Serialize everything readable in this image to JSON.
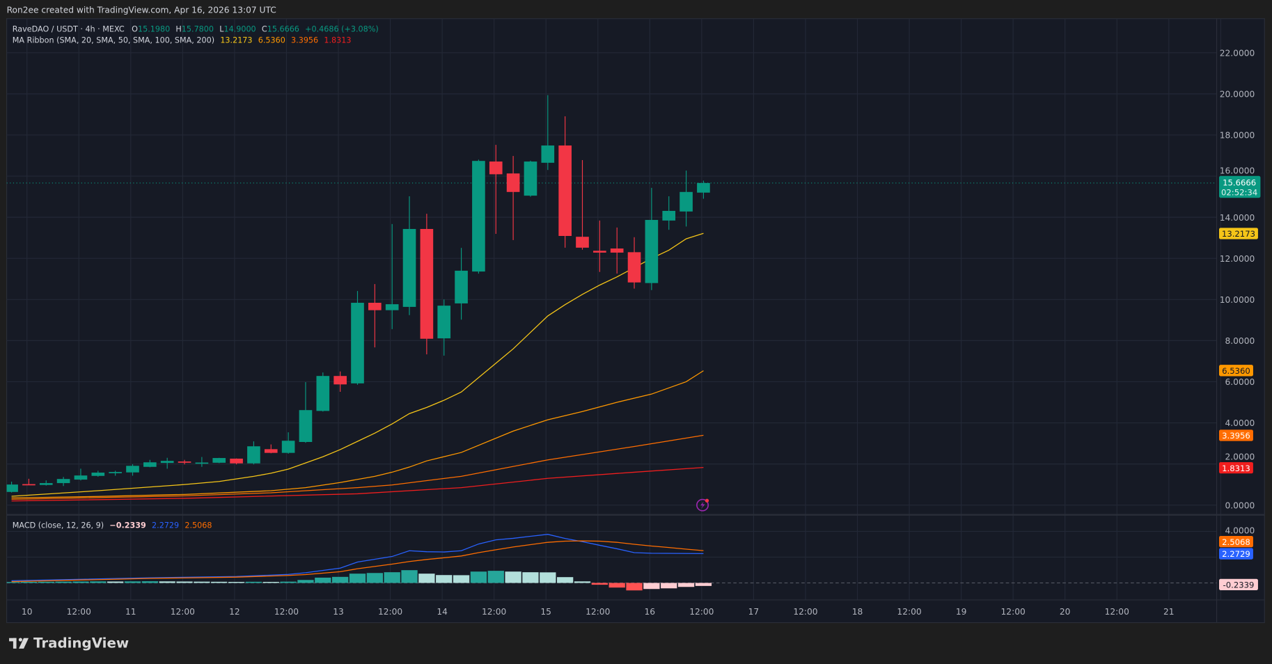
{
  "header": {
    "credit": "Ron2ee created with TradingView.com, Apr 16, 2026 13:07 UTC"
  },
  "legend": {
    "symbol": "RaveDAO / USDT · 4h · MEXC",
    "o_label": "O",
    "o": "15.1980",
    "h_label": "H",
    "h": "15.7800",
    "l_label": "L",
    "l": "14.9000",
    "c_label": "C",
    "c": "15.6666",
    "change": "+0.4686 (+3.08%)",
    "ma_title": "MA Ribbon (SMA, 20, SMA, 50, SMA, 100, SMA, 200)",
    "ma20": "13.2173",
    "ma50": "6.5360",
    "ma100": "3.3956",
    "ma200": "1.8313"
  },
  "macd_legend": {
    "title": "MACD (close, 12, 26, 9)",
    "hist": "−0.2339",
    "macd": "2.2729",
    "signal": "2.5068"
  },
  "price_labels": {
    "last": "15.6666",
    "countdown": "02:52:34",
    "ma20": "13.2173",
    "ma50": "6.5360",
    "ma100": "3.3956",
    "ma200": "1.8313"
  },
  "macd_labels": {
    "signal": "2.5068",
    "macd": "2.2729",
    "hist": "-0.2339",
    "tick": "4.0000"
  },
  "logo": {
    "text": "TradingView"
  },
  "colors": {
    "up": "#089981",
    "down": "#F23645",
    "ma20": "#F5C518",
    "ma50": "#FF9800",
    "ma100": "#FF6D00",
    "ma200": "#F01E1E",
    "macd": "#2962FF",
    "signal": "#FF6D00",
    "hist_up_strong": "#26A69A",
    "hist_up_weak": "#B2DFDB",
    "hist_down_strong": "#FF5252",
    "hist_down_weak": "#FFCDD2"
  },
  "alert_icon": "lightning-icon",
  "chart_data": [
    {
      "type": "candlestick",
      "title": "RaveDAO / USDT · 4h · MEXC",
      "ylim": [
        0,
        22
      ],
      "y_ticks": [
        "0.0000",
        "2.0000",
        "4.0000",
        "6.0000",
        "8.0000",
        "10.0000",
        "12.0000",
        "14.0000",
        "16.0000",
        "18.0000",
        "20.0000",
        "22.0000"
      ],
      "x_ticks": [
        "10",
        "12:00",
        "11",
        "12:00",
        "12",
        "12:00",
        "13",
        "12:00",
        "14",
        "12:00",
        "15",
        "12:00",
        "16",
        "12:00",
        "17",
        "12:00",
        "18",
        "12:00",
        "19",
        "12:00",
        "20",
        "12:00",
        "21",
        "12:00"
      ],
      "grid": true,
      "candles_ohlc": [
        [
          0.64,
          1.14,
          0.61,
          1.0
        ],
        [
          1.02,
          1.28,
          0.97,
          1.0
        ],
        [
          0.98,
          1.2,
          0.95,
          1.07
        ],
        [
          1.07,
          1.37,
          0.93,
          1.27
        ],
        [
          1.24,
          1.77,
          1.2,
          1.44
        ],
        [
          1.42,
          1.67,
          1.38,
          1.58
        ],
        [
          1.58,
          1.67,
          1.43,
          1.61
        ],
        [
          1.59,
          1.99,
          1.43,
          1.91
        ],
        [
          1.86,
          2.2,
          1.84,
          2.08
        ],
        [
          2.05,
          2.3,
          1.77,
          2.15
        ],
        [
          2.12,
          2.2,
          1.98,
          2.09
        ],
        [
          2.04,
          2.34,
          1.86,
          2.07
        ],
        [
          2.06,
          2.3,
          2.04,
          2.29
        ],
        [
          2.26,
          2.27,
          1.98,
          2.03
        ],
        [
          2.03,
          3.1,
          1.98,
          2.86
        ],
        [
          2.72,
          2.95,
          2.52,
          2.54
        ],
        [
          2.54,
          3.54,
          2.5,
          3.13
        ],
        [
          3.07,
          5.98,
          3.03,
          4.62
        ],
        [
          4.58,
          6.45,
          4.55,
          6.28
        ],
        [
          6.28,
          6.5,
          5.51,
          5.87
        ],
        [
          5.92,
          10.41,
          5.85,
          9.84
        ],
        [
          9.84,
          10.75,
          7.67,
          9.48
        ],
        [
          9.48,
          13.67,
          8.56,
          9.77
        ],
        [
          9.64,
          15.02,
          9.24,
          13.43
        ],
        [
          13.43,
          14.17,
          7.33,
          8.09
        ],
        [
          8.11,
          10.0,
          7.27,
          9.7
        ],
        [
          9.81,
          12.51,
          9.02,
          11.4
        ],
        [
          11.36,
          16.8,
          11.26,
          16.74
        ],
        [
          16.71,
          17.52,
          13.19,
          16.09
        ],
        [
          16.13,
          16.98,
          12.89,
          15.23
        ],
        [
          15.05,
          16.75,
          15.0,
          16.71
        ],
        [
          16.65,
          19.94,
          16.3,
          17.49
        ],
        [
          17.49,
          18.91,
          12.52,
          13.09
        ],
        [
          13.05,
          16.78,
          12.42,
          12.52
        ],
        [
          12.37,
          13.84,
          11.34,
          12.28
        ],
        [
          12.48,
          13.5,
          11.26,
          12.28
        ],
        [
          12.3,
          13.03,
          10.53,
          10.83
        ],
        [
          10.8,
          15.43,
          10.46,
          13.87
        ],
        [
          13.84,
          15.02,
          13.39,
          14.31
        ],
        [
          14.28,
          16.27,
          13.55,
          15.23
        ],
        [
          15.198,
          15.78,
          14.9,
          15.6666
        ]
      ],
      "series": [
        {
          "name": "SMA 20",
          "points": [
            [
              0,
              0.43
            ],
            [
              5,
              0.7
            ],
            [
              10,
              1.0
            ],
            [
              12,
              1.15
            ],
            [
              14,
              1.4
            ],
            [
              15,
              1.55
            ],
            [
              16,
              1.75
            ],
            [
              17,
              2.05
            ],
            [
              18,
              2.35
            ],
            [
              19,
              2.7
            ],
            [
              20,
              3.1
            ],
            [
              21,
              3.5
            ],
            [
              22,
              3.95
            ],
            [
              23,
              4.45
            ],
            [
              24,
              4.75
            ],
            [
              25,
              5.1
            ],
            [
              26,
              5.5
            ],
            [
              27,
              6.2
            ],
            [
              28,
              6.9
            ],
            [
              29,
              7.6
            ],
            [
              30,
              8.4
            ],
            [
              31,
              9.2
            ],
            [
              32,
              9.75
            ],
            [
              33,
              10.25
            ],
            [
              34,
              10.7
            ],
            [
              35,
              11.1
            ],
            [
              36,
              11.55
            ],
            [
              37,
              12.0
            ],
            [
              38,
              12.4
            ],
            [
              39,
              12.95
            ],
            [
              40,
              13.2173
            ]
          ]
        },
        {
          "name": "SMA 50",
          "points": [
            [
              0,
              0.35
            ],
            [
              5,
              0.42
            ],
            [
              10,
              0.52
            ],
            [
              15,
              0.7
            ],
            [
              17,
              0.85
            ],
            [
              19,
              1.1
            ],
            [
              21,
              1.4
            ],
            [
              22,
              1.6
            ],
            [
              23,
              1.85
            ],
            [
              24,
              2.15
            ],
            [
              26,
              2.56
            ],
            [
              29,
              3.6
            ],
            [
              31,
              4.15
            ],
            [
              33,
              4.55
            ],
            [
              35,
              5.0
            ],
            [
              37,
              5.4
            ],
            [
              39,
              6.0
            ],
            [
              40,
              6.536
            ]
          ]
        },
        {
          "name": "SMA 100",
          "points": [
            [
              0,
              0.28
            ],
            [
              10,
              0.45
            ],
            [
              15,
              0.6
            ],
            [
              20,
              0.85
            ],
            [
              22,
              0.98
            ],
            [
              26,
              1.4
            ],
            [
              31,
              2.2
            ],
            [
              36,
              2.85
            ],
            [
              40,
              3.3956
            ]
          ]
        },
        {
          "name": "SMA 200",
          "points": [
            [
              0,
              0.2
            ],
            [
              10,
              0.33
            ],
            [
              20,
              0.55
            ],
            [
              26,
              0.85
            ],
            [
              31,
              1.3
            ],
            [
              36,
              1.6
            ],
            [
              40,
              1.8313
            ]
          ]
        }
      ]
    },
    {
      "type": "bar+line",
      "title": "MACD (close, 12, 26, 9)",
      "histogram": [
        0.07,
        0.08,
        0.09,
        0.1,
        0.11,
        0.12,
        0.11,
        0.12,
        0.13,
        0.12,
        0.11,
        0.1,
        0.09,
        0.08,
        0.09,
        0.08,
        0.1,
        0.23,
        0.41,
        0.47,
        0.72,
        0.77,
        0.83,
        0.99,
        0.72,
        0.61,
        0.6,
        0.88,
        0.94,
        0.88,
        0.83,
        0.82,
        0.45,
        0.12,
        -0.14,
        -0.36,
        -0.58,
        -0.47,
        -0.42,
        -0.31,
        -0.2339
      ],
      "series": [
        {
          "name": "MACD",
          "points": [
            [
              0,
              0.17
            ],
            [
              8,
              0.4
            ],
            [
              13,
              0.5
            ],
            [
              16,
              0.66
            ],
            [
              17,
              0.79
            ],
            [
              19,
              1.15
            ],
            [
              20,
              1.62
            ],
            [
              22,
              2.05
            ],
            [
              23,
              2.5
            ],
            [
              24,
              2.42
            ],
            [
              25,
              2.4
            ],
            [
              26,
              2.5
            ],
            [
              27,
              3.02
            ],
            [
              28,
              3.34
            ],
            [
              29,
              3.46
            ],
            [
              30,
              3.62
            ],
            [
              31,
              3.77
            ],
            [
              32,
              3.45
            ],
            [
              33,
              3.2
            ],
            [
              34,
              2.92
            ],
            [
              35,
              2.65
            ],
            [
              36,
              2.35
            ],
            [
              37,
              2.3
            ],
            [
              40,
              2.2729
            ]
          ]
        },
        {
          "name": "Signal",
          "points": [
            [
              0,
              0.1
            ],
            [
              8,
              0.35
            ],
            [
              13,
              0.45
            ],
            [
              16,
              0.58
            ],
            [
              17,
              0.65
            ],
            [
              19,
              0.87
            ],
            [
              20,
              1.1
            ],
            [
              22,
              1.46
            ],
            [
              23,
              1.66
            ],
            [
              24,
              1.82
            ],
            [
              25,
              1.95
            ],
            [
              26,
              2.09
            ],
            [
              27,
              2.35
            ],
            [
              28,
              2.57
            ],
            [
              29,
              2.79
            ],
            [
              30,
              2.97
            ],
            [
              31,
              3.15
            ],
            [
              32,
              3.24
            ],
            [
              33,
              3.26
            ],
            [
              34,
              3.24
            ],
            [
              35,
              3.15
            ],
            [
              36,
              3.0
            ],
            [
              37,
              2.86
            ],
            [
              38,
              2.75
            ],
            [
              39,
              2.62
            ],
            [
              40,
              2.5068
            ]
          ]
        }
      ]
    }
  ]
}
